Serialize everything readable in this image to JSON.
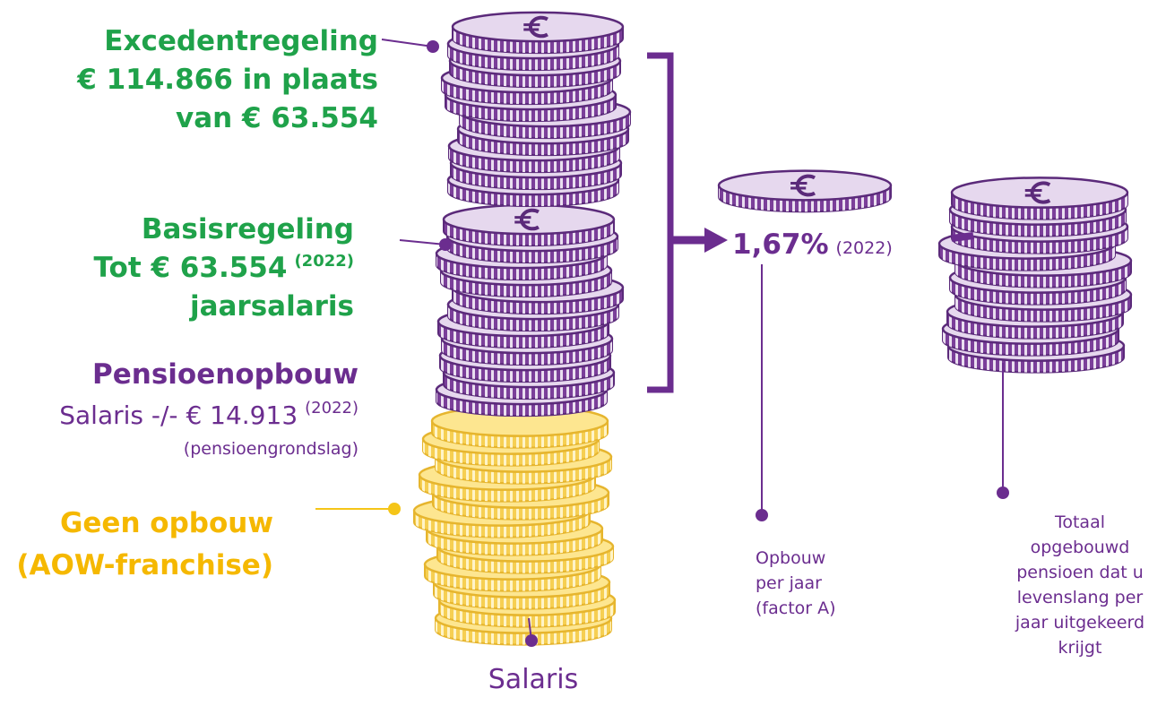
{
  "excedent": {
    "lines": [
      "Excedentregeling",
      "€ 114.866 in plaats",
      "van € 63.554"
    ]
  },
  "basis": {
    "line1": "Basisregeling",
    "line2": "Tot € 63.554",
    "line2_sup": "(2022)",
    "line3": "jaarsalaris"
  },
  "opbouw": {
    "title": "Pensioenopbouw",
    "line2": "Salaris -/- € 14.913",
    "line2_sup": "(2022)",
    "line3": "(pensioengrondslag)"
  },
  "franchise": {
    "lines": [
      "Geen opbouw",
      "(AOW-franchise)"
    ]
  },
  "salaris": "Salaris",
  "factor": {
    "value": "1,67%",
    "year": "(2022)",
    "caption": [
      "Opbouw",
      "per jaar",
      "(factor A)"
    ]
  },
  "totaal": {
    "caption": [
      "Totaal",
      "opgebouwd",
      "pensioen dat u",
      "levenslang per",
      "jaar uitgekeerd",
      "krijgt"
    ]
  }
}
